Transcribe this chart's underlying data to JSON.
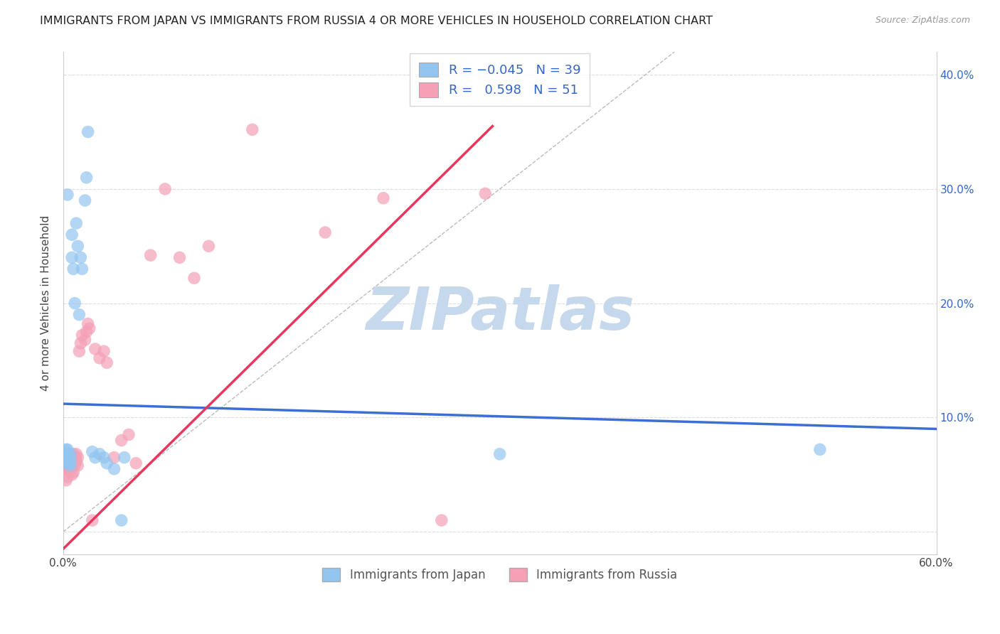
{
  "title": "IMMIGRANTS FROM JAPAN VS IMMIGRANTS FROM RUSSIA 4 OR MORE VEHICLES IN HOUSEHOLD CORRELATION CHART",
  "source": "Source: ZipAtlas.com",
  "ylabel": "4 or more Vehicles in Household",
  "xlim": [
    0.0,
    0.6
  ],
  "ylim": [
    -0.02,
    0.42
  ],
  "xtick_values": [
    0.0,
    0.1,
    0.2,
    0.3,
    0.4,
    0.5,
    0.6
  ],
  "xtick_labels": [
    "0.0%",
    "",
    "",
    "",
    "",
    "",
    "60.0%"
  ],
  "ytick_values": [
    0.0,
    0.1,
    0.2,
    0.3,
    0.4
  ],
  "ytick_labels": [
    "",
    "10.0%",
    "20.0%",
    "30.0%",
    "40.0%"
  ],
  "r_japan": -0.045,
  "n_japan": 39,
  "r_russia": 0.598,
  "n_russia": 51,
  "color_japan": "#92C5F0",
  "color_russia": "#F4A0B5",
  "trendline_japan_color": "#3B6FD4",
  "trendline_russia_color": "#E8365D",
  "diagonal_color": "#BBBBBB",
  "grid_color": "#DDDDDD",
  "watermark_color": "#C5D8EC",
  "trendline_japan_x0": 0.0,
  "trendline_japan_y0": 0.112,
  "trendline_japan_x1": 0.6,
  "trendline_japan_y1": 0.09,
  "trendline_russia_x0": 0.0,
  "trendline_russia_y0": -0.015,
  "trendline_russia_x1": 0.295,
  "trendline_russia_y1": 0.355,
  "japan_x": [
    0.001,
    0.001,
    0.001,
    0.002,
    0.002,
    0.002,
    0.002,
    0.003,
    0.003,
    0.003,
    0.003,
    0.004,
    0.004,
    0.005,
    0.005,
    0.005,
    0.006,
    0.006,
    0.007,
    0.008,
    0.009,
    0.01,
    0.011,
    0.012,
    0.013,
    0.015,
    0.016,
    0.017,
    0.02,
    0.022,
    0.025,
    0.028,
    0.03,
    0.035,
    0.04,
    0.042,
    0.3,
    0.52,
    0.003
  ],
  "japan_y": [
    0.065,
    0.068,
    0.07,
    0.06,
    0.065,
    0.068,
    0.072,
    0.06,
    0.065,
    0.068,
    0.072,
    0.06,
    0.065,
    0.058,
    0.062,
    0.068,
    0.24,
    0.26,
    0.23,
    0.2,
    0.27,
    0.25,
    0.19,
    0.24,
    0.23,
    0.29,
    0.31,
    0.35,
    0.07,
    0.065,
    0.068,
    0.065,
    0.06,
    0.055,
    0.01,
    0.065,
    0.068,
    0.072,
    0.295
  ],
  "russia_x": [
    0.001,
    0.001,
    0.002,
    0.002,
    0.002,
    0.003,
    0.003,
    0.003,
    0.004,
    0.004,
    0.004,
    0.005,
    0.005,
    0.005,
    0.006,
    0.006,
    0.006,
    0.007,
    0.007,
    0.008,
    0.008,
    0.009,
    0.009,
    0.01,
    0.01,
    0.011,
    0.012,
    0.013,
    0.015,
    0.016,
    0.017,
    0.018,
    0.02,
    0.022,
    0.025,
    0.028,
    0.03,
    0.035,
    0.04,
    0.045,
    0.05,
    0.06,
    0.07,
    0.08,
    0.09,
    0.1,
    0.13,
    0.18,
    0.22,
    0.26,
    0.29
  ],
  "russia_y": [
    0.055,
    0.06,
    0.045,
    0.055,
    0.06,
    0.048,
    0.055,
    0.062,
    0.058,
    0.062,
    0.068,
    0.055,
    0.06,
    0.065,
    0.05,
    0.058,
    0.065,
    0.052,
    0.068,
    0.058,
    0.065,
    0.062,
    0.068,
    0.058,
    0.065,
    0.158,
    0.165,
    0.172,
    0.168,
    0.175,
    0.182,
    0.178,
    0.01,
    0.16,
    0.152,
    0.158,
    0.148,
    0.065,
    0.08,
    0.085,
    0.06,
    0.242,
    0.3,
    0.24,
    0.222,
    0.25,
    0.352,
    0.262,
    0.292,
    0.01,
    0.296
  ]
}
